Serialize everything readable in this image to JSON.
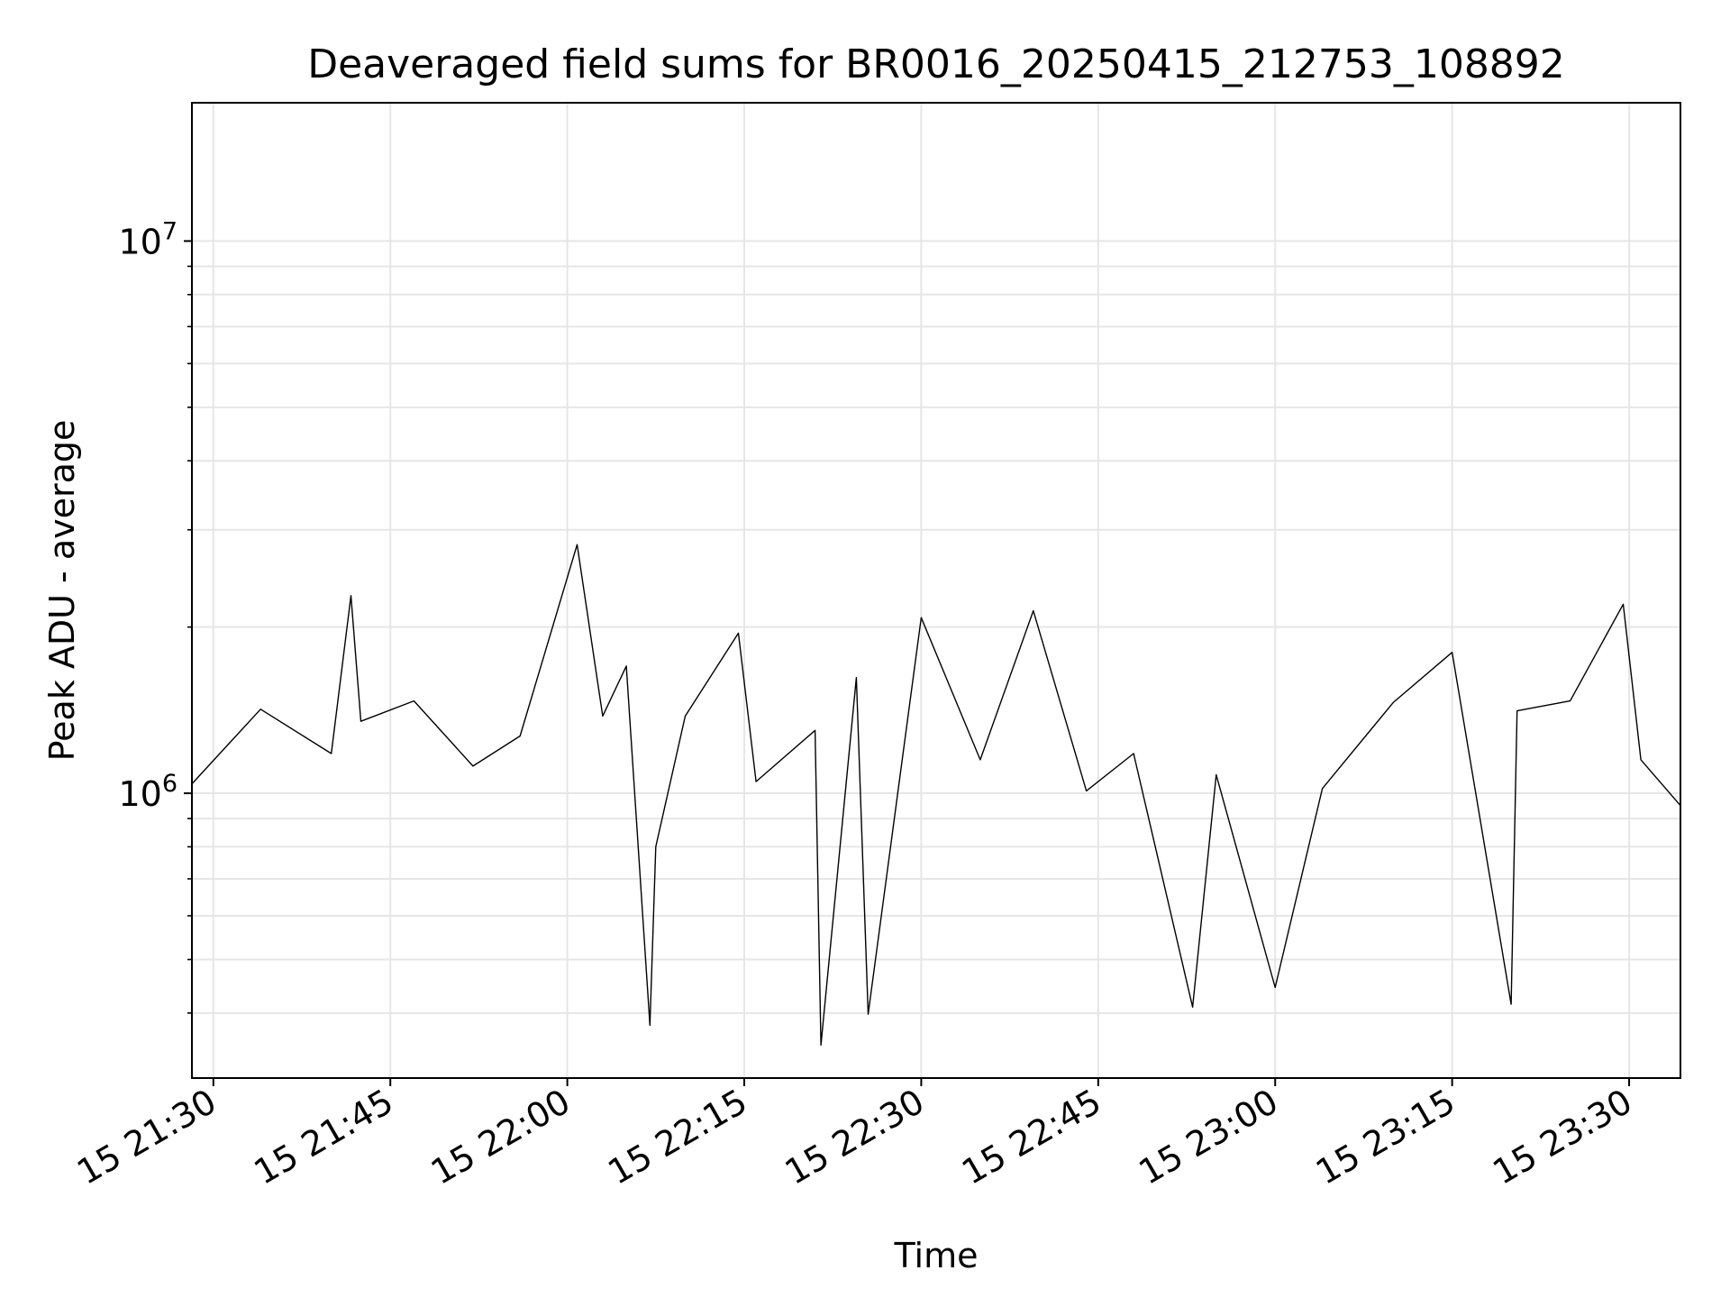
{
  "chart_data": {
    "type": "line",
    "title": "Deaveraged field sums for BR0016_20250415_212753_108892",
    "xlabel": "Time",
    "ylabel": "Peak ADU - average",
    "yscale": "log",
    "ylim": [
      305000,
      17800000
    ],
    "xlim": [
      "2025-04-15 21:28:11",
      "2025-04-15 23:34:21"
    ],
    "grid": true,
    "x_ticks": [
      {
        "t": "2025-04-15 21:30",
        "label": "15 21:30"
      },
      {
        "t": "2025-04-15 21:45",
        "label": "15 21:45"
      },
      {
        "t": "2025-04-15 22:00",
        "label": "15 22:00"
      },
      {
        "t": "2025-04-15 22:15",
        "label": "15 22:15"
      },
      {
        "t": "2025-04-15 22:30",
        "label": "15 22:30"
      },
      {
        "t": "2025-04-15 22:45",
        "label": "15 22:45"
      },
      {
        "t": "2025-04-15 23:00",
        "label": "15 23:00"
      },
      {
        "t": "2025-04-15 23:15",
        "label": "15 23:15"
      },
      {
        "t": "2025-04-15 23:30",
        "label": "15 23:30"
      }
    ],
    "y_major_ticks": [
      {
        "value": 1000000,
        "base": "10",
        "exp": "6"
      },
      {
        "value": 10000000,
        "base": "10",
        "exp": "7"
      }
    ],
    "y_minor_ticks": [
      400000,
      500000,
      600000,
      700000,
      800000,
      900000,
      2000000,
      3000000,
      4000000,
      5000000,
      6000000,
      7000000,
      8000000,
      9000000
    ],
    "series": [
      {
        "color": "#000000",
        "x": [
          "2025-04-15 21:28:11",
          "2025-04-15 21:34:00",
          "2025-04-15 21:40:00",
          "2025-04-15 21:41:40",
          "2025-04-15 21:42:30",
          "2025-04-15 21:47:00",
          "2025-04-15 21:52:00",
          "2025-04-15 21:56:00",
          "2025-04-15 22:00:50",
          "2025-04-15 22:03:00",
          "2025-04-15 22:05:00",
          "2025-04-15 22:07:00",
          "2025-04-15 22:07:30",
          "2025-04-15 22:10:00",
          "2025-04-15 22:14:30",
          "2025-04-15 22:16:00",
          "2025-04-15 22:21:00",
          "2025-04-15 22:21:30",
          "2025-04-15 22:24:30",
          "2025-04-15 22:25:30",
          "2025-04-15 22:30:00",
          "2025-04-15 22:35:00",
          "2025-04-15 22:39:30",
          "2025-04-15 22:44:00",
          "2025-04-15 22:48:00",
          "2025-04-15 22:53:00",
          "2025-04-15 22:55:00",
          "2025-04-15 23:00:00",
          "2025-04-15 23:04:00",
          "2025-04-15 23:10:00",
          "2025-04-15 23:15:00",
          "2025-04-15 23:20:00",
          "2025-04-15 23:20:30",
          "2025-04-15 23:25:00",
          "2025-04-15 23:29:30",
          "2025-04-15 23:31:00",
          "2025-04-15 23:34:21"
        ],
        "y": [
          1040000,
          1420000,
          1180000,
          2280000,
          1350000,
          1470000,
          1120000,
          1270000,
          2820000,
          1380000,
          1700000,
          380000,
          800000,
          1380000,
          1950000,
          1050000,
          1300000,
          350000,
          1620000,
          398000,
          2080000,
          1150000,
          2140000,
          1010000,
          1180000,
          410000,
          1080000,
          445000,
          1020000,
          1460000,
          1800000,
          415000,
          1410000,
          1470000,
          2200000,
          1150000,
          950000
        ]
      }
    ]
  }
}
